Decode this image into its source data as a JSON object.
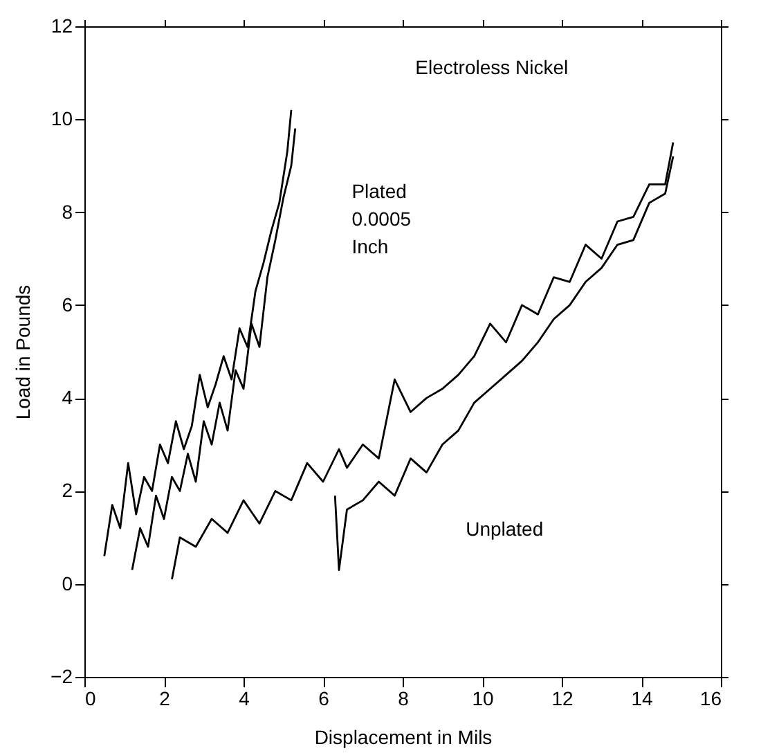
{
  "chart_data": {
    "type": "line",
    "xlabel": "Displacement in Mils",
    "ylabel": "Load in Pounds",
    "xlim": [
      0,
      16
    ],
    "xticks": [
      0,
      2,
      4,
      6,
      8,
      10,
      12,
      14,
      16
    ],
    "ylim": [
      -2,
      12
    ],
    "yticks": [
      -2,
      0,
      2,
      4,
      6,
      8,
      10,
      12
    ],
    "grid": false,
    "marker": "none",
    "line_style": "solid",
    "annotations": [
      "Electroless Nickel",
      "Plated\n0.0005\nInch",
      "Unplated"
    ],
    "series": [
      {
        "color": "#000000",
        "x": [
          0.5,
          0.7,
          0.9,
          1.1,
          1.3,
          1.5,
          1.7,
          1.9,
          2.1,
          2.3,
          2.5,
          2.7,
          2.9,
          3.1,
          3.3,
          3.5,
          3.7,
          3.9,
          4.1,
          4.3,
          4.5,
          4.7,
          4.9,
          5.1,
          5.2
        ],
        "values": [
          0.6,
          1.7,
          1.2,
          2.6,
          1.5,
          2.3,
          2.0,
          3.0,
          2.6,
          3.5,
          2.9,
          3.4,
          4.5,
          3.8,
          4.3,
          4.9,
          4.4,
          5.5,
          5.1,
          6.3,
          6.9,
          7.6,
          8.2,
          9.3,
          10.2
        ]
      },
      {
        "color": "#000000",
        "x": [
          1.2,
          1.4,
          1.6,
          1.8,
          2.0,
          2.2,
          2.4,
          2.6,
          2.8,
          3.0,
          3.2,
          3.4,
          3.6,
          3.8,
          4.0,
          4.2,
          4.4,
          4.6,
          4.8,
          5.0,
          5.2,
          5.3
        ],
        "values": [
          0.3,
          1.2,
          0.8,
          1.9,
          1.4,
          2.3,
          2.0,
          2.8,
          2.2,
          3.5,
          3.0,
          3.9,
          3.3,
          4.6,
          4.2,
          5.6,
          5.1,
          6.6,
          7.4,
          8.3,
          9.0,
          9.8
        ]
      },
      {
        "color": "#000000",
        "x": [
          2.2,
          2.4,
          2.8,
          3.2,
          3.6,
          4.0,
          4.4,
          4.8,
          5.2,
          5.6,
          6.0,
          6.4,
          6.6,
          7.0,
          7.4,
          7.8,
          8.2,
          8.6,
          9.0,
          9.4,
          9.8,
          10.2,
          10.6,
          11.0,
          11.4,
          11.8,
          12.2,
          12.6,
          13.0,
          13.4,
          13.8,
          14.2,
          14.6,
          14.8
        ],
        "values": [
          0.1,
          1.0,
          0.8,
          1.4,
          1.1,
          1.8,
          1.3,
          2.0,
          1.8,
          2.6,
          2.2,
          2.9,
          2.5,
          3.0,
          2.7,
          4.4,
          3.7,
          4.0,
          4.2,
          4.5,
          4.9,
          5.6,
          5.2,
          6.0,
          5.8,
          6.6,
          6.5,
          7.3,
          7.0,
          7.8,
          7.9,
          8.6,
          8.6,
          9.5
        ]
      },
      {
        "color": "#000000",
        "x": [
          6.3,
          6.4,
          6.6,
          7.0,
          7.4,
          7.8,
          8.2,
          8.6,
          9.0,
          9.4,
          9.8,
          10.2,
          10.6,
          11.0,
          11.4,
          11.8,
          12.2,
          12.6,
          13.0,
          13.4,
          13.8,
          14.2,
          14.6,
          14.8
        ],
        "values": [
          1.9,
          0.3,
          1.6,
          1.8,
          2.2,
          1.9,
          2.7,
          2.4,
          3.0,
          3.3,
          3.9,
          4.2,
          4.5,
          4.8,
          5.2,
          5.7,
          6.0,
          6.5,
          6.8,
          7.3,
          7.4,
          8.2,
          8.4,
          9.2
        ]
      }
    ]
  }
}
